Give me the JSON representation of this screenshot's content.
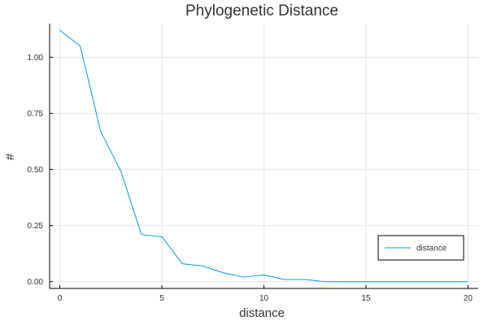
{
  "chart_data": {
    "type": "line",
    "title": "Phylogenetic Distance",
    "xlabel": "distance",
    "ylabel": "#",
    "xlim": [
      -0.5,
      20.5
    ],
    "ylim": [
      -0.03,
      1.15
    ],
    "x_ticks": [
      0,
      5,
      10,
      15,
      20
    ],
    "y_ticks": [
      0.0,
      0.25,
      0.5,
      0.75,
      1.0
    ],
    "x_tick_labels": [
      "0",
      "5",
      "10",
      "15",
      "20"
    ],
    "y_tick_labels": [
      "0.00",
      "0.25",
      "0.50",
      "0.75",
      "1.00"
    ],
    "grid": true,
    "legend_position": "bottom-right",
    "series": [
      {
        "name": "distance",
        "color": "#009AFA",
        "x": [
          0,
          1,
          2,
          3,
          4,
          5,
          6,
          7,
          8,
          9,
          10,
          11,
          12,
          13,
          14,
          15,
          16,
          17,
          18,
          19,
          20
        ],
        "y": [
          1.12,
          1.05,
          0.67,
          0.49,
          0.21,
          0.2,
          0.08,
          0.07,
          0.04,
          0.02,
          0.03,
          0.01,
          0.01,
          0.0,
          0.0,
          0.0,
          0.0,
          0.0,
          0.0,
          0.0,
          0.0
        ]
      }
    ]
  }
}
